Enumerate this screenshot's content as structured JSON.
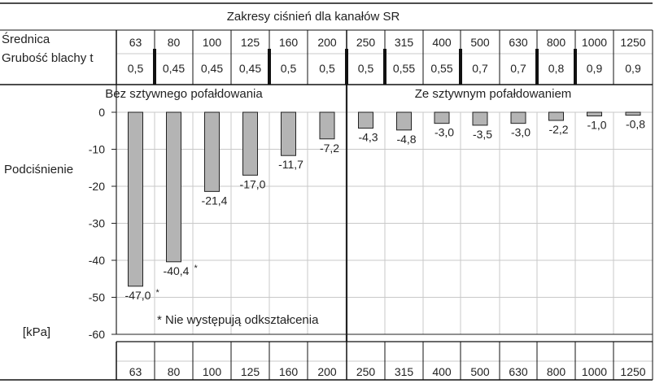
{
  "header": {
    "title": "Zakresy ciśnień dla kanałów SR",
    "row1_label": "Średnica",
    "row2_label": "Grubość blachy t",
    "diameters": [
      "63",
      "80",
      "100",
      "125",
      "160",
      "200",
      "250",
      "315",
      "400",
      "500",
      "630",
      "800",
      "1000",
      "1250"
    ],
    "thickness": [
      "0,5",
      "0,45",
      "0,45",
      "0,45",
      "0,5",
      "0,5",
      "0,5",
      "0,55",
      "0,55",
      "0,7",
      "0,7",
      "0,8",
      "0,9",
      "0,9"
    ]
  },
  "sections": {
    "left": "Bez sztywnego pofałdowania",
    "right": "Ze sztywnym pofałdowaniem"
  },
  "chart_data": {
    "type": "bar",
    "categories": [
      "63",
      "80",
      "100",
      "125",
      "160",
      "200",
      "250",
      "315",
      "400",
      "500",
      "630",
      "800",
      "1000",
      "1250"
    ],
    "values": [
      -47.0,
      -40.4,
      -21.4,
      -17.0,
      -11.7,
      -7.2,
      -4.3,
      -4.8,
      -3.0,
      -3.5,
      -3.0,
      -2.2,
      -1.0,
      -0.8
    ],
    "value_labels": [
      "-47,0",
      "-40,4",
      "-21,4",
      "-17,0",
      "-11,7",
      "-7,2",
      "-4,3",
      "-4,8",
      "-3,0",
      "-3,5",
      "-3,0",
      "-2,2",
      "-1,0",
      "-0,8"
    ],
    "starred": [
      true,
      true,
      false,
      false,
      false,
      false,
      false,
      false,
      false,
      false,
      false,
      false,
      false,
      false
    ],
    "ylabel": "Podciśnienie",
    "yunit": "[kPa]",
    "ylim": [
      -60,
      0
    ],
    "yticks": [
      0,
      -10,
      -20,
      -30,
      -40,
      -50,
      -60
    ],
    "ytick_labels": [
      "0",
      "-10",
      "-20",
      "-30",
      "-40",
      "-50",
      "-60"
    ],
    "grid": true,
    "footnote": "* Nie występują odkształcenia",
    "star_marker": "*",
    "bar_color": "#b4b4b4",
    "bar_stroke": "#222222",
    "grid_color": "#c8c8c8"
  }
}
